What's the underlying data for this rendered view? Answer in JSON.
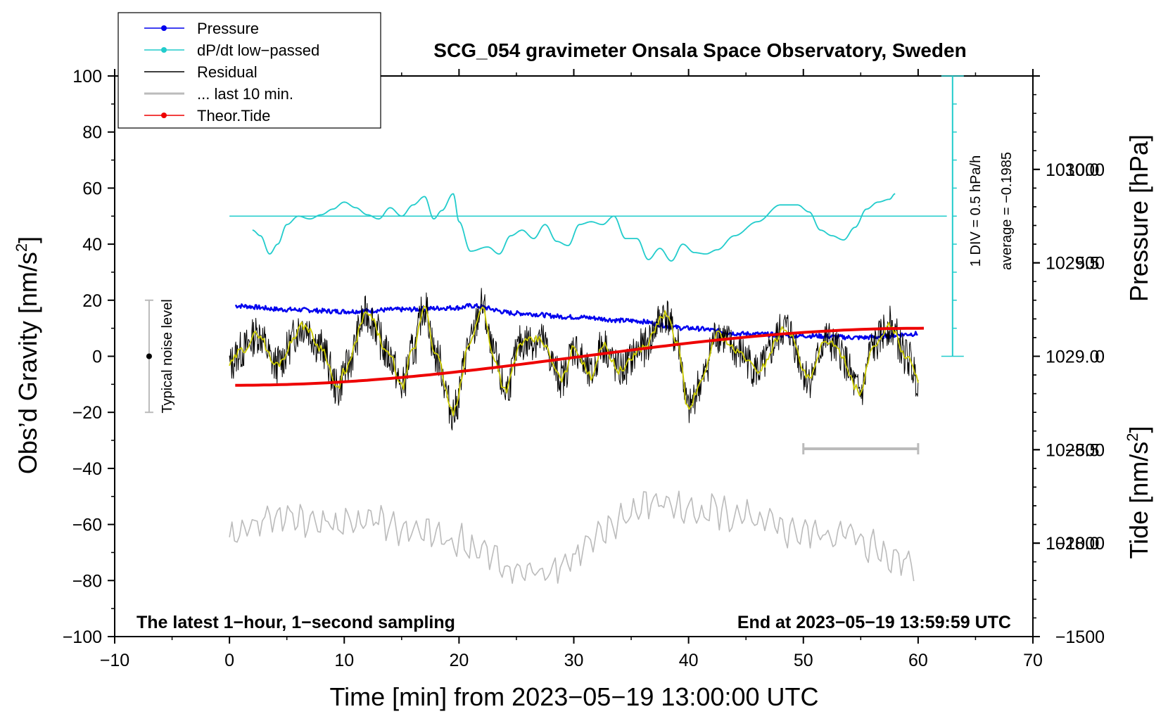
{
  "chart_data": {
    "type": "line",
    "title": "SCG_054 gravimeter Onsala Space Observatory, Sweden",
    "xlabel": "Time [min] from 2023−05−19 13:00:00 UTC",
    "ylabel_left": "Obs’d Gravity [nm/s",
    "ylabel_left_sup": "2",
    "ylabel_left_close": "]",
    "ylabel_right_pressure": "Pressure [hPa]",
    "ylabel_right_tide": "Tide [nm/s",
    "ylabel_right_tide_sup": "2",
    "ylabel_right_tide_close": "]",
    "xlim": [
      -10,
      70
    ],
    "ylim_left": [
      -100,
      100
    ],
    "x_ticks": [
      -10,
      0,
      10,
      20,
      30,
      40,
      50,
      60,
      70
    ],
    "x_tick_labels": [
      "−10",
      "0",
      "10",
      "20",
      "30",
      "40",
      "50",
      "60",
      "70"
    ],
    "y_ticks": [
      100,
      80,
      60,
      40,
      20,
      0,
      -20,
      -40,
      -60,
      -80,
      -100
    ],
    "y_tick_labels": [
      "100",
      "80",
      "60",
      "40",
      "20",
      "0",
      "−20",
      "−40",
      "−60",
      "−80",
      "−100"
    ],
    "pressure_axis": {
      "ticks": [
        1030.0,
        1029.5,
        1029.0,
        1028.5,
        1028.0
      ],
      "labels": [
        "1030.0",
        "1029.5",
        "1029.0",
        "1028.5",
        "1028.0"
      ],
      "range": [
        1027.5,
        1030.5
      ]
    },
    "tide_axis": {
      "ticks": [
        1000,
        500,
        0,
        -500,
        -1000,
        -1500
      ],
      "labels": [
        "1000",
        "500",
        "0",
        "−500",
        "−1000",
        "−1500"
      ],
      "range": [
        -1500,
        1500
      ]
    },
    "legend": {
      "items": [
        {
          "label": "Pressure",
          "color": "#0000ee",
          "marker": true
        },
        {
          "label": "dP/dt low−passed",
          "color": "#22cccc",
          "marker": true
        },
        {
          "label": "Residual",
          "color": "#000000",
          "marker": false
        },
        {
          "label": "... last 10 min.",
          "color": "#bbbbbb",
          "marker": false
        },
        {
          "label": "Theor.Tide",
          "color": "#ee0000",
          "marker": true
        }
      ],
      "position": "top-left"
    },
    "dpdt_scale": {
      "div_label": "1 DIV = 0.5 hPa/h",
      "average_label": "average = −0.1985",
      "zero_level": 50,
      "color": "#22cccc"
    },
    "noise_level": {
      "label": "Typical noise level",
      "x": -7,
      "center": 0,
      "half_range": 20
    },
    "scale_bar_10min": {
      "x_start": 50,
      "x_end": 60,
      "y": -33,
      "color": "#bbbbbb"
    },
    "annotations": {
      "left_bottom": "The latest 1−hour, 1−second sampling",
      "right_bottom": "End at 2023−05−19 13:59:59 UTC"
    },
    "series": [
      {
        "name": "Pressure",
        "axis": "pressure",
        "color": "#0000ee",
        "x": [
          0.5,
          5,
          10,
          15,
          20,
          21,
          25,
          30,
          35,
          40,
          45,
          50,
          55,
          60
        ],
        "values": [
          1029.27,
          1029.25,
          1029.24,
          1029.25,
          1029.26,
          1029.27,
          1029.23,
          1029.21,
          1029.19,
          1029.15,
          1029.12,
          1029.11,
          1029.1,
          1029.12
        ]
      },
      {
        "name": "dP/dt low−passed",
        "axis": "left",
        "color": "#22cccc",
        "x": [
          2,
          2.7,
          3.5,
          4.2,
          5,
          6,
          7,
          8,
          9,
          10,
          11,
          12,
          13,
          14,
          15,
          16,
          17,
          17.8,
          18.5,
          19.5,
          20,
          21,
          22.5,
          23.5,
          24.5,
          25.5,
          26.5,
          27.5,
          28.5,
          29.5,
          30.5,
          31.5,
          32.5,
          33.5,
          34.5,
          35.5,
          36.5,
          37.5,
          38.5,
          39.5,
          40.5,
          41.5,
          42.5,
          44,
          46,
          48,
          49.5,
          50.5,
          51.5,
          52.5,
          53.5,
          54.5,
          55.5,
          56.5,
          57.5,
          58
        ],
        "values": [
          45,
          43,
          36.5,
          40,
          47,
          50,
          49,
          50.5,
          52.5,
          55,
          53,
          50.5,
          49,
          53,
          50,
          54,
          57,
          49,
          52,
          58,
          48,
          37.5,
          39,
          36.5,
          43,
          45,
          42,
          47,
          41,
          39.5,
          47,
          48,
          47,
          50,
          42,
          42,
          34.5,
          38.5,
          34,
          40,
          37,
          36.5,
          38,
          43,
          48,
          54,
          54,
          51.5,
          45,
          43,
          41.5,
          46,
          52.5,
          55,
          56,
          58
        ]
      },
      {
        "name": "Residual",
        "axis": "left",
        "color": "#000000",
        "x": [
          0,
          1,
          2.5,
          4,
          6.5,
          8,
          9.5,
          10,
          12,
          14,
          15,
          16,
          17,
          18,
          19.5,
          21,
          22,
          23,
          24,
          25.5,
          27,
          29,
          30,
          31.5,
          32.5,
          34,
          36,
          38,
          39,
          40,
          41,
          42.5,
          44.5,
          46,
          48.5,
          50.5,
          52,
          53,
          55,
          56,
          57.5,
          59,
          60
        ],
        "values": [
          -3,
          2,
          8,
          -3,
          11,
          3,
          -12,
          -5,
          15,
          0,
          -11,
          2,
          18,
          0,
          -20,
          5,
          18,
          0,
          -12,
          5,
          6,
          -8,
          3,
          -7,
          4,
          -5,
          3,
          15,
          5,
          -19,
          -10,
          8,
          1,
          -5,
          10,
          -8,
          6,
          2,
          -13,
          3,
          11,
          0,
          -8
        ]
      },
      {
        "name": "Smoothed residual",
        "axis": "left",
        "color": "#cccc00",
        "x": [
          0,
          1,
          2.5,
          4,
          6.5,
          8,
          9.5,
          10,
          12,
          14,
          15,
          16,
          17,
          18,
          19.5,
          21,
          22,
          23,
          24,
          25.5,
          27,
          29,
          30,
          31.5,
          32.5,
          34,
          36,
          38,
          39,
          40,
          41,
          42.5,
          44.5,
          46,
          48.5,
          50.5,
          52,
          53,
          55,
          56,
          57.5,
          59,
          60
        ],
        "values": [
          -3,
          2,
          8,
          -3,
          11,
          3,
          -12,
          -5,
          15,
          0,
          -11,
          2,
          18,
          0,
          -20,
          5,
          18,
          0,
          -12,
          5,
          6,
          -8,
          3,
          -7,
          4,
          -5,
          3,
          15,
          5,
          -19,
          -10,
          8,
          1,
          -5,
          10,
          -8,
          6,
          2,
          -13,
          3,
          11,
          0,
          -8
        ]
      },
      {
        "name": "... last 10 min.",
        "axis": "left",
        "color": "#bbbbbb",
        "x": [
          0,
          1,
          2,
          3,
          4,
          5,
          6,
          7,
          8,
          9,
          10,
          11,
          12,
          13,
          14,
          15,
          16,
          17,
          18,
          19,
          20,
          21,
          22,
          23,
          24,
          25,
          26,
          27,
          28,
          29,
          30,
          31,
          32,
          33,
          34,
          35,
          36,
          37,
          38,
          39,
          40,
          41,
          42,
          43,
          44,
          45,
          46,
          47,
          48,
          49,
          50,
          51,
          52,
          53,
          54,
          55,
          56,
          57,
          58,
          59,
          59.8
        ],
        "values": [
          -67,
          -62,
          -60,
          -58,
          -57,
          -58,
          -57,
          -60,
          -58,
          -60,
          -61,
          -59,
          -58,
          -58,
          -60,
          -62,
          -64,
          -63,
          -64,
          -66,
          -66,
          -68,
          -70,
          -72,
          -75,
          -77,
          -77,
          -77,
          -75,
          -74,
          -72,
          -68,
          -66,
          -62,
          -58,
          -56,
          -54,
          -52,
          -52,
          -54,
          -56,
          -55,
          -54,
          -56,
          -58,
          -58,
          -60,
          -60,
          -62,
          -62,
          -63,
          -63,
          -64,
          -63,
          -64,
          -66,
          -68,
          -70,
          -72,
          -72,
          -75
        ]
      },
      {
        "name": "Theor.Tide",
        "axis": "tide",
        "color": "#ee0000",
        "x": [
          0.5,
          60.5
        ],
        "values": [
          -155,
          150
        ]
      }
    ]
  }
}
